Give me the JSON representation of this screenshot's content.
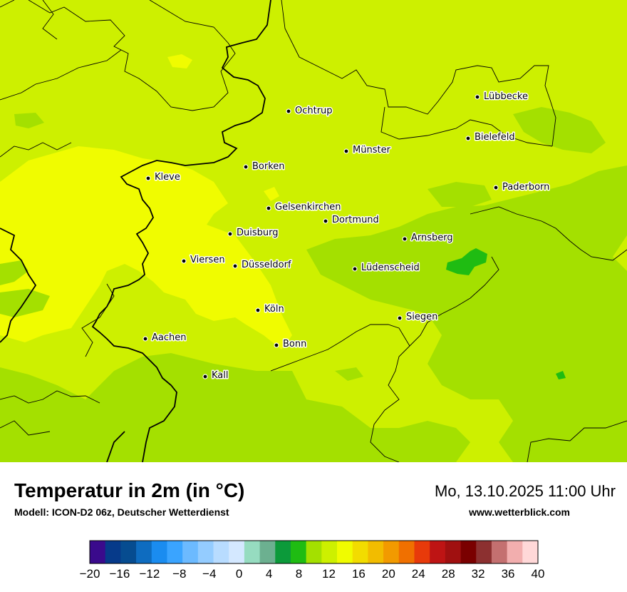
{
  "map": {
    "cities": [
      {
        "name": "Lübbecke"
      },
      {
        "name": "Ochtrup"
      },
      {
        "name": "Bielefeld"
      },
      {
        "name": "Münster"
      },
      {
        "name": "Borken"
      },
      {
        "name": "Kleve"
      },
      {
        "name": "Paderborn"
      },
      {
        "name": "Gelsenkirchen"
      },
      {
        "name": "Dortmund"
      },
      {
        "name": "Duisburg"
      },
      {
        "name": "Arnsberg"
      },
      {
        "name": "Viersen"
      },
      {
        "name": "Düsseldorf"
      },
      {
        "name": "Lüdenscheid"
      },
      {
        "name": "Köln"
      },
      {
        "name": "Siegen"
      },
      {
        "name": "Aachen"
      },
      {
        "name": "Bonn"
      },
      {
        "name": "Kall"
      }
    ],
    "colors": {
      "base": "#cdf000",
      "yellow": "#f0fc00",
      "light_green": "#a4e000",
      "green": "#1fbc12",
      "border": "#000000"
    }
  },
  "footer": {
    "title": "Temperatur in 2m (in °C)",
    "model": "Modell: ICON-D2 06z, Deutscher Wetterdienst",
    "datetime": "Mo, 13.10.2025 11:00 Uhr",
    "website": "www.wetterblick.com"
  },
  "legend": {
    "unit": "°C",
    "min": -20,
    "max": 40,
    "step": 2,
    "colors": [
      "#3a0a8c",
      "#063a8a",
      "#064c90",
      "#0e6cc0",
      "#1a8cf0",
      "#3aa4ff",
      "#6cbaff",
      "#94ccff",
      "#b8dcff",
      "#d4e8ff",
      "#96dcc0",
      "#6cb090",
      "#0c9a3a",
      "#1fbc12",
      "#a4e000",
      "#cdf000",
      "#f0fc00",
      "#f2dc00",
      "#f2bc00",
      "#f29a00",
      "#f07000",
      "#e83a0a",
      "#be1414",
      "#a01010",
      "#7a0000",
      "#8c3030",
      "#c47070",
      "#f2aeae",
      "#ffd8d8"
    ],
    "tick_labels": [
      "−20",
      "−16",
      "−12",
      "−8",
      "−4",
      "0",
      "4",
      "8",
      "12",
      "16",
      "20",
      "24",
      "28",
      "32",
      "36",
      "40"
    ]
  }
}
